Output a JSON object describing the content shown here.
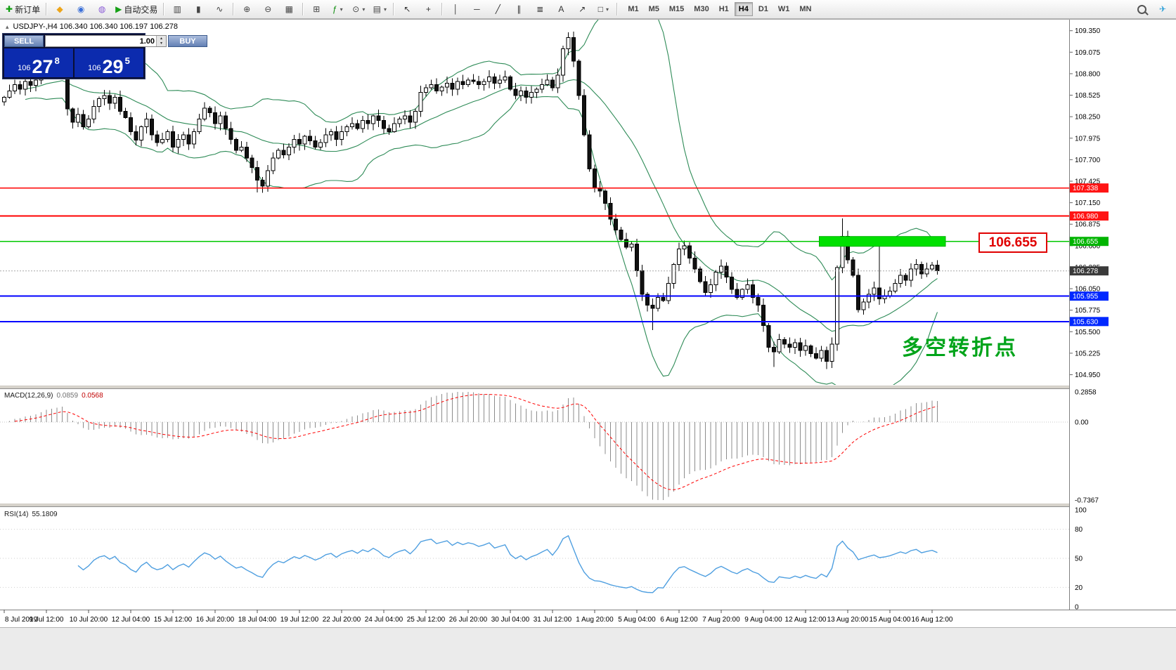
{
  "toolbar": {
    "items": [
      {
        "t": "btn",
        "name": "new-order",
        "glyph": "✚",
        "color": "#0f9d0f",
        "label": "新订单"
      },
      {
        "t": "sep"
      },
      {
        "t": "btn",
        "name": "mql5",
        "glyph": "◆",
        "color": "#eda51a"
      },
      {
        "t": "btn",
        "name": "community",
        "glyph": "◉",
        "color": "#3a6fd8"
      },
      {
        "t": "btn",
        "name": "market",
        "glyph": "◍",
        "color": "#8a5bd6"
      },
      {
        "t": "btn",
        "name": "autotrading",
        "glyph": "▶",
        "color": "#16a016",
        "label": "自动交易"
      },
      {
        "t": "sep"
      },
      {
        "t": "btn",
        "name": "bar-chart-mode",
        "glyph": "▥",
        "color": "#444"
      },
      {
        "t": "btn",
        "name": "candlestick-mode",
        "glyph": "▮",
        "color": "#444"
      },
      {
        "t": "btn",
        "name": "line-chart-mode",
        "glyph": "∿",
        "color": "#444"
      },
      {
        "t": "sep"
      },
      {
        "t": "btn",
        "name": "zoom-in",
        "glyph": "⊕",
        "color": "#444"
      },
      {
        "t": "btn",
        "name": "zoom-out",
        "glyph": "⊖",
        "color": "#444"
      },
      {
        "t": "btn",
        "name": "grid",
        "glyph": "▦",
        "color": "#444"
      },
      {
        "t": "sep"
      },
      {
        "t": "btn",
        "name": "tile-windows",
        "glyph": "⊞",
        "color": "#444"
      },
      {
        "t": "btn",
        "name": "indicators",
        "glyph": "ƒ",
        "color": "#0c8c0c",
        "caret": true
      },
      {
        "t": "btn",
        "name": "periods",
        "glyph": "⊙",
        "color": "#444",
        "caret": true
      },
      {
        "t": "btn",
        "name": "templates",
        "glyph": "▤",
        "color": "#444",
        "caret": true
      },
      {
        "t": "sep"
      },
      {
        "t": "btn",
        "name": "cursor",
        "glyph": "↖",
        "color": "#333"
      },
      {
        "t": "btn",
        "name": "crosshair",
        "glyph": "+",
        "color": "#333"
      },
      {
        "t": "sep"
      },
      {
        "t": "btn",
        "name": "vertical-line-tool",
        "glyph": "│",
        "color": "#333"
      },
      {
        "t": "btn",
        "name": "horizontal-line-tool",
        "glyph": "─",
        "color": "#333"
      },
      {
        "t": "btn",
        "name": "trendline-tool",
        "glyph": "╱",
        "color": "#333"
      },
      {
        "t": "btn",
        "name": "channel-tool",
        "glyph": "∥",
        "color": "#333"
      },
      {
        "t": "btn",
        "name": "fibonacci-tool",
        "glyph": "≣",
        "color": "#333"
      },
      {
        "t": "btn",
        "name": "text-tool",
        "glyph": "A",
        "color": "#333"
      },
      {
        "t": "btn",
        "name": "arrow-tool",
        "glyph": "↗",
        "color": "#333"
      },
      {
        "t": "btn",
        "name": "shapes-tool",
        "glyph": "□",
        "color": "#333",
        "caret": true
      },
      {
        "t": "sep"
      }
    ],
    "timeframes": [
      "M1",
      "M5",
      "M15",
      "M30",
      "H1",
      "H4",
      "D1",
      "W1",
      "MN"
    ],
    "active_timeframe": "H4",
    "right": [
      {
        "name": "search",
        "glyph": "mag"
      },
      {
        "name": "notifications",
        "glyph": "✈",
        "color": "#2a9fd8"
      }
    ]
  },
  "glyphs": {
    "collapse": "▴",
    "spin_up": "▴",
    "spin_down": "▾"
  },
  "trade_panel": {
    "sell_label": "SELL",
    "buy_label": "BUY",
    "volume": "1.00",
    "sell_price": {
      "prefix": "106",
      "pips": "27",
      "pt": "8"
    },
    "buy_price": {
      "prefix": "106",
      "pips": "29",
      "pt": "5"
    }
  },
  "chart": {
    "ohlc_line": "USDJPY-,H4  106.340 106.340 106.197 106.278",
    "y_ticks": [
      "104.950",
      "105.225",
      "105.500",
      "105.775",
      "106.050",
      "106.325",
      "106.600",
      "106.875",
      "107.150",
      "107.425",
      "107.700",
      "107.975",
      "108.250",
      "108.525",
      "108.800",
      "109.075",
      "109.350"
    ],
    "levels": [
      {
        "price": 107.338,
        "label": "107.338",
        "tag_color": "#ff1414",
        "line_color": "#ff0000",
        "width": 1.6
      },
      {
        "price": 106.98,
        "label": "106.980",
        "tag_color": "#ff1414",
        "line_color": "#ff0000",
        "width": 1.6
      },
      {
        "price": 106.655,
        "label": "106.655",
        "tag_color": "#00b400",
        "line_color": "#00c800",
        "width": 1.6
      },
      {
        "price": 105.955,
        "label": "105.955",
        "tag_color": "#0028ff",
        "line_color": "#0000ff",
        "width": 2
      },
      {
        "price": 105.63,
        "label": "105.630",
        "tag_color": "#0028ff",
        "line_color": "#0000ff",
        "width": 2
      }
    ],
    "current_price": {
      "value": 106.278,
      "label": "106.278",
      "tag_color": "#3a3a3a"
    },
    "zone": {
      "price": 106.655,
      "label": "106.655",
      "start_index": 155,
      "end_x": 1345,
      "color": "#00e000",
      "border": "#00b000"
    },
    "annotation": {
      "text": "多空转折点",
      "color": "#00a41a"
    },
    "bollinger": {
      "period": 20,
      "deviation": 2,
      "color": "#2e8b57"
    },
    "candles": {
      "first_open": 108.44,
      "closes": [
        108.5,
        108.58,
        108.66,
        108.6,
        108.7,
        108.65,
        108.72,
        108.78,
        108.85,
        108.8,
        108.83,
        108.87,
        108.35,
        108.18,
        108.28,
        108.12,
        108.22,
        108.38,
        108.48,
        108.52,
        108.42,
        108.5,
        108.32,
        108.24,
        108.06,
        107.95,
        108.12,
        108.22,
        108.02,
        107.92,
        107.96,
        108.06,
        107.86,
        107.96,
        108.02,
        107.9,
        108.06,
        108.22,
        108.36,
        108.3,
        108.16,
        108.26,
        108.1,
        107.96,
        107.82,
        107.86,
        107.72,
        107.6,
        107.44,
        107.36,
        107.56,
        107.72,
        107.82,
        107.76,
        107.86,
        107.96,
        107.9,
        108.0,
        107.94,
        107.86,
        107.92,
        108.02,
        108.06,
        107.96,
        108.06,
        108.12,
        108.16,
        108.1,
        108.2,
        108.16,
        108.26,
        108.2,
        108.1,
        108.06,
        108.16,
        108.22,
        108.26,
        108.18,
        108.32,
        108.56,
        108.62,
        108.66,
        108.58,
        108.63,
        108.68,
        108.6,
        108.7,
        108.66,
        108.72,
        108.7,
        108.66,
        108.7,
        108.76,
        108.68,
        108.72,
        108.76,
        108.6,
        108.52,
        108.58,
        108.5,
        108.56,
        108.6,
        108.66,
        108.72,
        108.62,
        108.78,
        109.12,
        109.26,
        108.96,
        108.52,
        108.02,
        107.58,
        107.34,
        107.3,
        107.14,
        106.94,
        106.8,
        106.68,
        106.58,
        106.62,
        106.28,
        105.98,
        105.84,
        105.8,
        105.94,
        105.9,
        106.12,
        106.36,
        106.56,
        106.6,
        106.44,
        106.3,
        106.14,
        106.0,
        106.1,
        106.26,
        106.34,
        106.2,
        106.04,
        105.94,
        106.04,
        106.1,
        105.94,
        105.84,
        105.58,
        105.3,
        105.24,
        105.4,
        105.34,
        105.3,
        105.36,
        105.26,
        105.32,
        105.22,
        105.16,
        105.26,
        105.12,
        105.34,
        106.32,
        106.72,
        106.42,
        106.22,
        105.78,
        105.88,
        105.98,
        106.06,
        105.92,
        105.96,
        106.02,
        106.12,
        106.22,
        106.16,
        106.3,
        106.36,
        106.24,
        106.3,
        106.35,
        106.278
      ],
      "wick_overrides": {
        "48": {
          "low": 107.28
        },
        "107": {
          "high": 109.33
        },
        "123": {
          "low": 105.52
        },
        "146": {
          "low": 105.05
        },
        "156": {
          "low": 105.02
        },
        "159": {
          "high": 106.95
        },
        "166": {
          "high": 106.68
        }
      }
    }
  },
  "macd": {
    "title": "MACD(12,26,9)",
    "value_main": "0.0859",
    "value_signal": "0.0568",
    "fast": 12,
    "slow": 26,
    "signal": 9,
    "axis": {
      "top": "0.2858",
      "zero": "0.00",
      "bottom": "-0.7367"
    },
    "range": {
      "top": 0.2858,
      "bottom": -0.7367
    },
    "histogram_color": "#8c8c8c",
    "signal_color": "#ff0000"
  },
  "rsi": {
    "title": "RSI(14)",
    "value": "55.1809",
    "period": 14,
    "axis": [
      {
        "label": "100",
        "value": 100
      },
      {
        "label": "80",
        "value": 80
      },
      {
        "label": "50",
        "value": 50
      },
      {
        "label": "20",
        "value": 20
      },
      {
        "label": "0",
        "value": 0
      }
    ],
    "levels": [
      80,
      50,
      20
    ],
    "line_color": "#4f9fe0"
  },
  "time_axis": {
    "labels": [
      "8 Jul 2019",
      "9 Jul 12:00",
      "10 Jul 20:00",
      "12 Jul 04:00",
      "15 Jul 12:00",
      "16 Jul 20:00",
      "18 Jul 04:00",
      "19 Jul 12:00",
      "22 Jul 20:00",
      "24 Jul 04:00",
      "25 Jul 12:00",
      "26 Jul 20:00",
      "30 Jul 04:00",
      "31 Jul 12:00",
      "1 Aug 20:00",
      "5 Aug 04:00",
      "6 Aug 12:00",
      "7 Aug 20:00",
      "9 Aug 04:00",
      "12 Aug 12:00",
      "13 Aug 20:00",
      "15 Aug 04:00",
      "16 Aug 12:00"
    ]
  }
}
